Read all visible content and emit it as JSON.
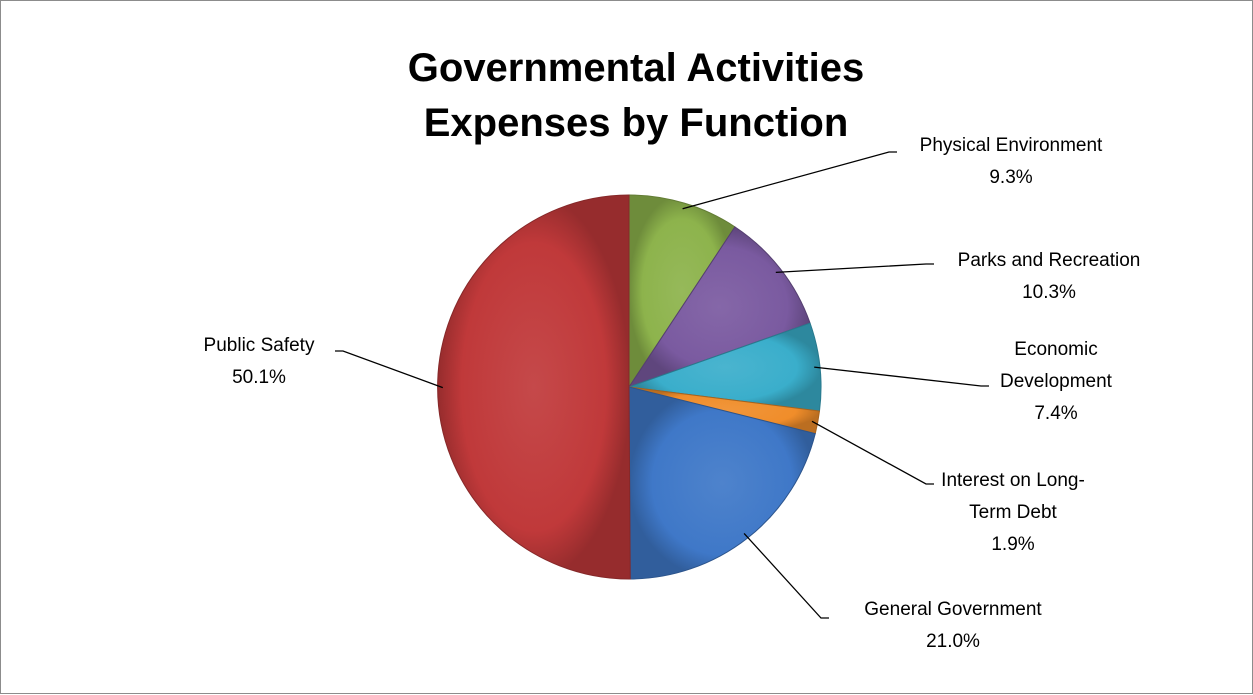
{
  "chart_data": {
    "type": "pie",
    "title": [
      "Governmental Activities",
      "Expenses by Function"
    ],
    "slices": [
      {
        "name": "Physical Environment",
        "value": 9.3,
        "label_lines": [
          "Physical Environment"
        ],
        "value_label": "9.3%",
        "color": "#8db34c"
      },
      {
        "name": "Parks and Recreation",
        "value": 10.3,
        "label_lines": [
          "Parks and Recreation"
        ],
        "value_label": "10.3%",
        "color": "#7a5aa0"
      },
      {
        "name": "Economic Development",
        "value": 7.4,
        "label_lines": [
          "Economic",
          "Development"
        ],
        "value_label": "7.4%",
        "color": "#3aaecb"
      },
      {
        "name": "Interest on Long-Term Debt",
        "value": 1.9,
        "label_lines": [
          "Interest on Long-",
          "Term Debt"
        ],
        "value_label": "1.9%",
        "color": "#f08d2a"
      },
      {
        "name": "General Government",
        "value": 21.0,
        "label_lines": [
          "General Government"
        ],
        "value_label": "21.0%",
        "color": "#3f78c8"
      },
      {
        "name": "Public Safety",
        "value": 50.1,
        "label_lines": [
          "Public Safety"
        ],
        "value_label": "50.1%",
        "color": "#c0393a"
      }
    ]
  }
}
